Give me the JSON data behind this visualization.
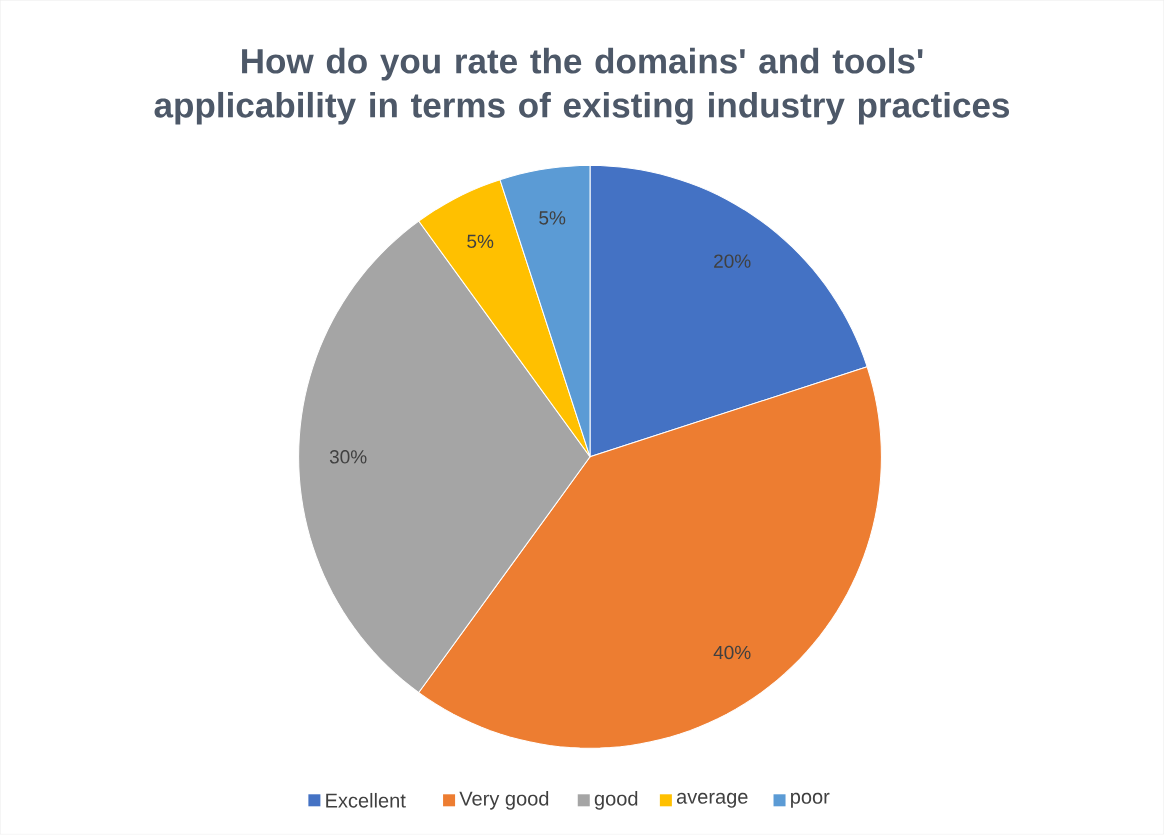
{
  "chart_data": {
    "type": "pie",
    "title": "How do you rate the domains' and tools' applicability in terms of existing industry practices",
    "categories": [
      "Excellent",
      "Very good",
      "good",
      "average",
      "poor"
    ],
    "values": [
      20,
      40,
      30,
      5,
      5
    ],
    "value_labels": [
      "20%",
      "40%",
      "30%",
      "5%",
      "5%"
    ],
    "colors": [
      "#4472c4",
      "#ed7d31",
      "#a5a5a5",
      "#ffc000",
      "#5b9bd5"
    ],
    "legend": "bottom"
  }
}
